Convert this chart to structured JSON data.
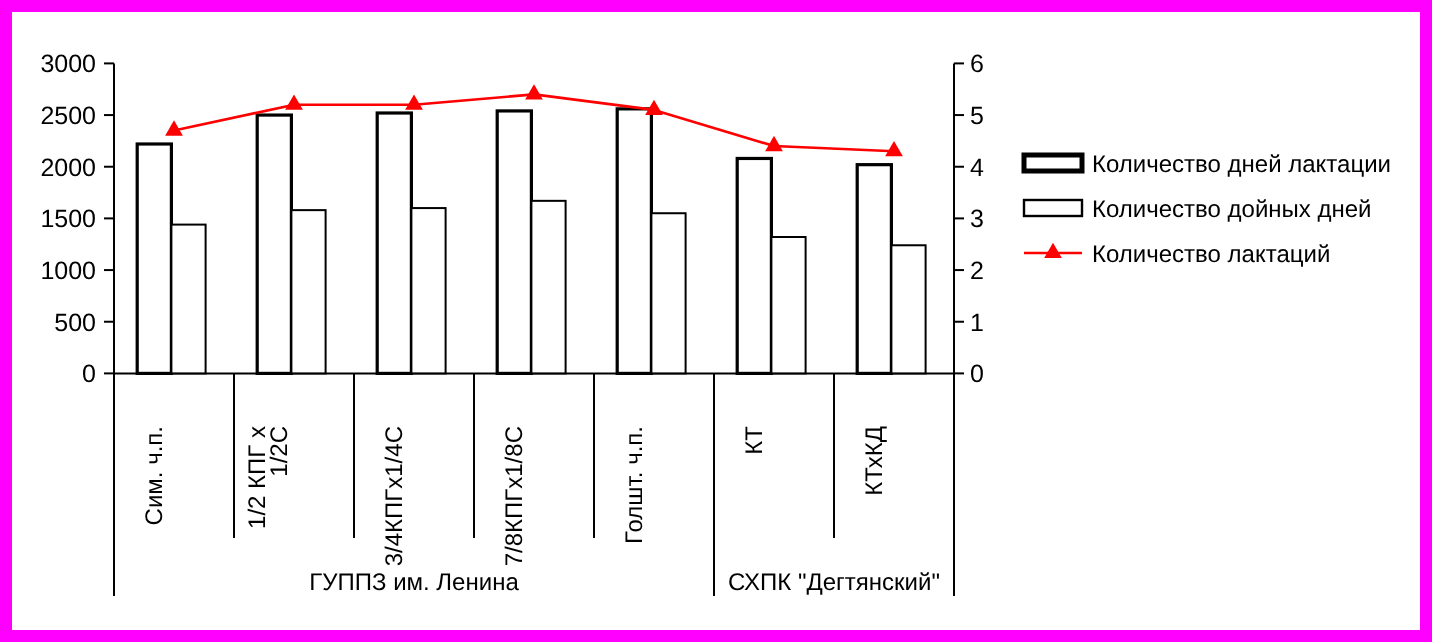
{
  "chart_data": {
    "type": "bar",
    "categories": [
      "Сим. ч.п.",
      "1/2 КПГ х 1/2С",
      "3/4КПГх1/4С",
      "7/8КПГх1/8С",
      "Голшт. ч.п.",
      "КТ",
      "КТхКД"
    ],
    "series": [
      {
        "name": "Количество дней лактации",
        "color": "#ffffff",
        "values": [
          2220,
          2500,
          2520,
          2540,
          2560,
          2080,
          2020
        ]
      },
      {
        "name": "Количество дойных дней",
        "color": "#ffffff",
        "values": [
          1440,
          1580,
          1600,
          1670,
          1550,
          1320,
          1240
        ]
      },
      {
        "name": "Количество лактаций",
        "type": "line",
        "axis": "y2",
        "color": "#ff0000",
        "values": [
          4.7,
          5.2,
          5.2,
          5.4,
          5.1,
          4.4,
          4.3
        ]
      }
    ],
    "ylim": [
      0,
      3000
    ],
    "yticks": [
      0,
      500,
      1000,
      1500,
      2000,
      2500,
      3000
    ],
    "y2lim": [
      0,
      6
    ],
    "y2ticks": [
      0,
      1,
      2,
      3,
      4,
      5,
      6
    ],
    "marker": "triangle",
    "grid": false,
    "legend": "right",
    "annotations": [
      "ГУППЗ им. Ленина",
      "СХПК \"Дегтянский\""
    ]
  }
}
